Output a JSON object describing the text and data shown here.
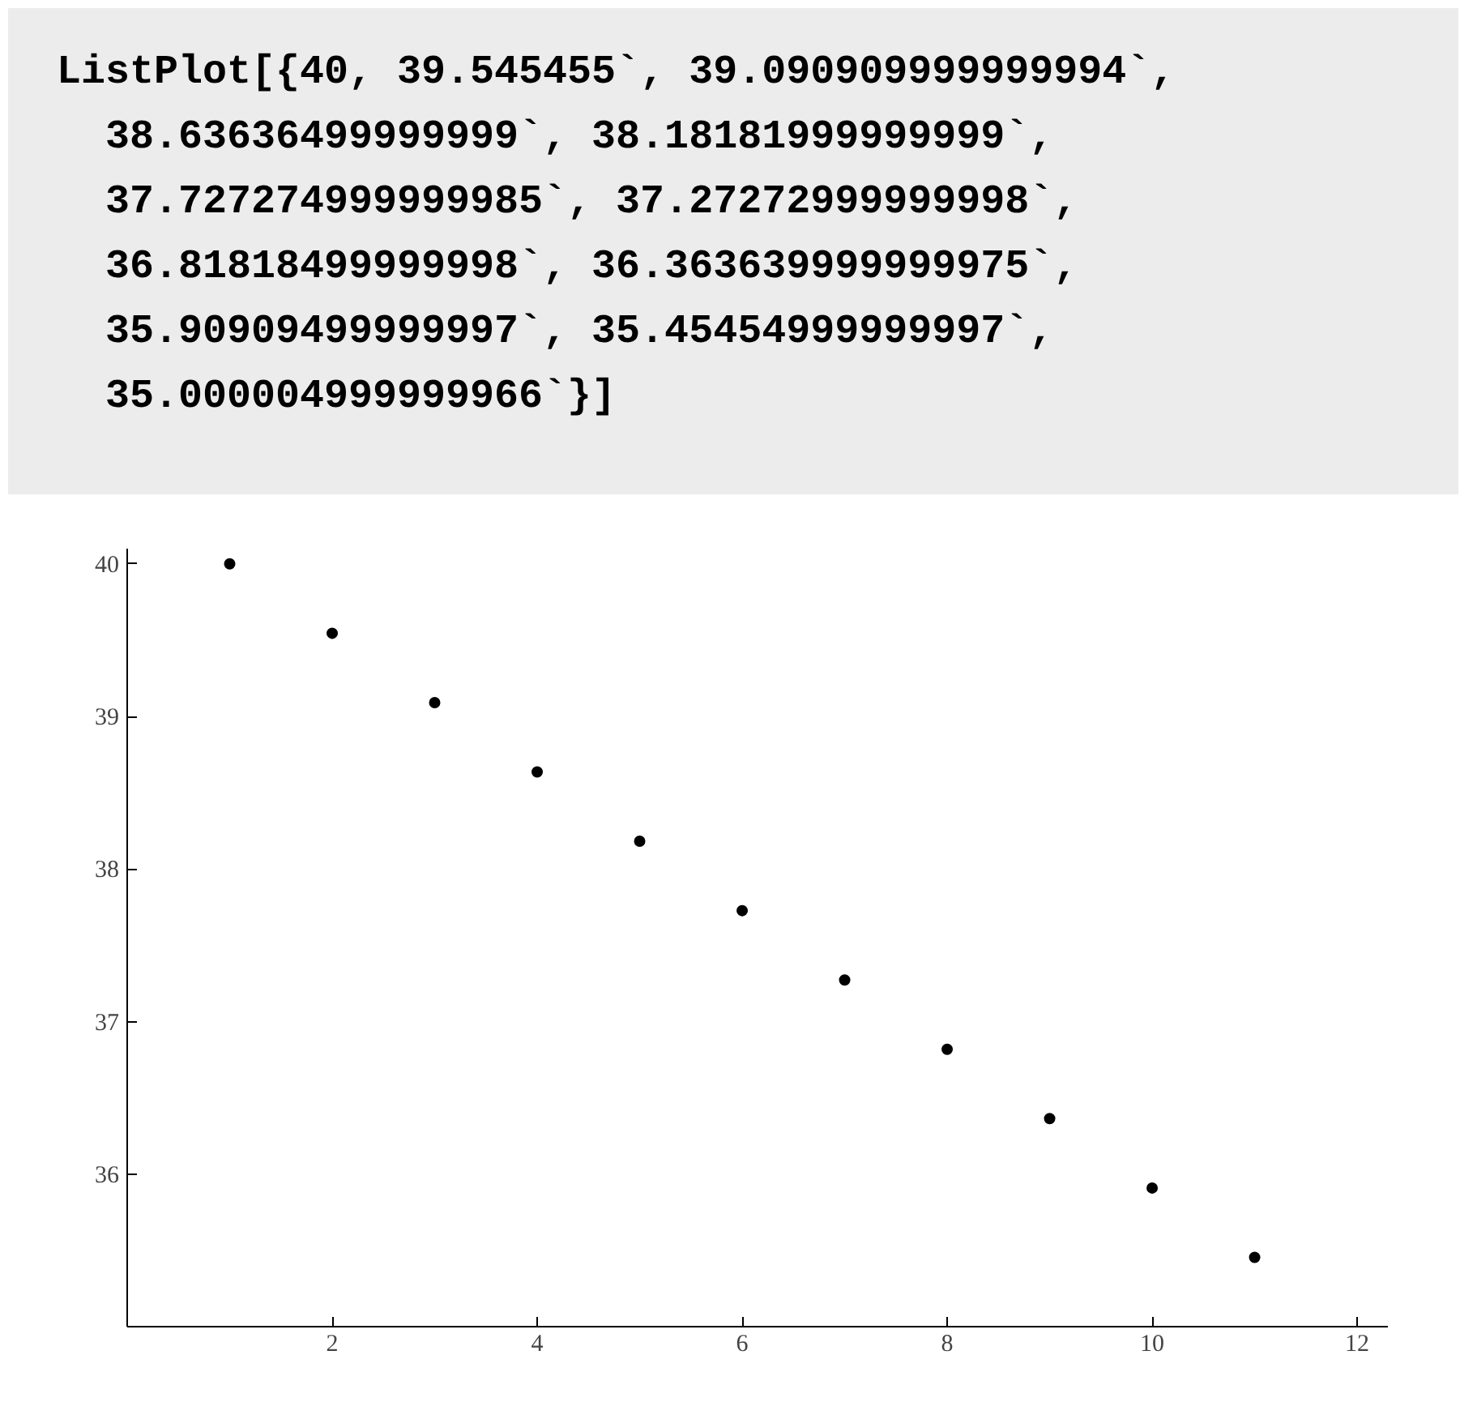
{
  "chart_data": {
    "type": "scatter",
    "annotations": [
      "ListPlot[{40, 39.545455`, 39.090909999999994`,\n  38.63636499999999`, 38.18181999999999`,\n  37.727274999999985`, 37.27272999999998`,\n  36.81818499999998`, 36.363639999999975`,\n  35.90909499999997`, 35.45454999999997`,\n  35.000004999999966`}]"
    ],
    "x": [
      1,
      2,
      3,
      4,
      5,
      6,
      7,
      8,
      9,
      10,
      11
    ],
    "values": [
      40,
      39.545455,
      39.09091,
      38.636365,
      38.18182,
      37.727275,
      37.27273,
      36.818185,
      36.36364,
      35.909095,
      35.45455
    ],
    "color": "#000000",
    "marker": "circle",
    "xlim": [
      0,
      12.3
    ],
    "ylim": [
      35,
      40.1
    ],
    "xticks": [
      2,
      4,
      6,
      8,
      10,
      12
    ],
    "yticks": [
      36,
      37,
      38,
      39,
      40
    ],
    "grid": false
  }
}
